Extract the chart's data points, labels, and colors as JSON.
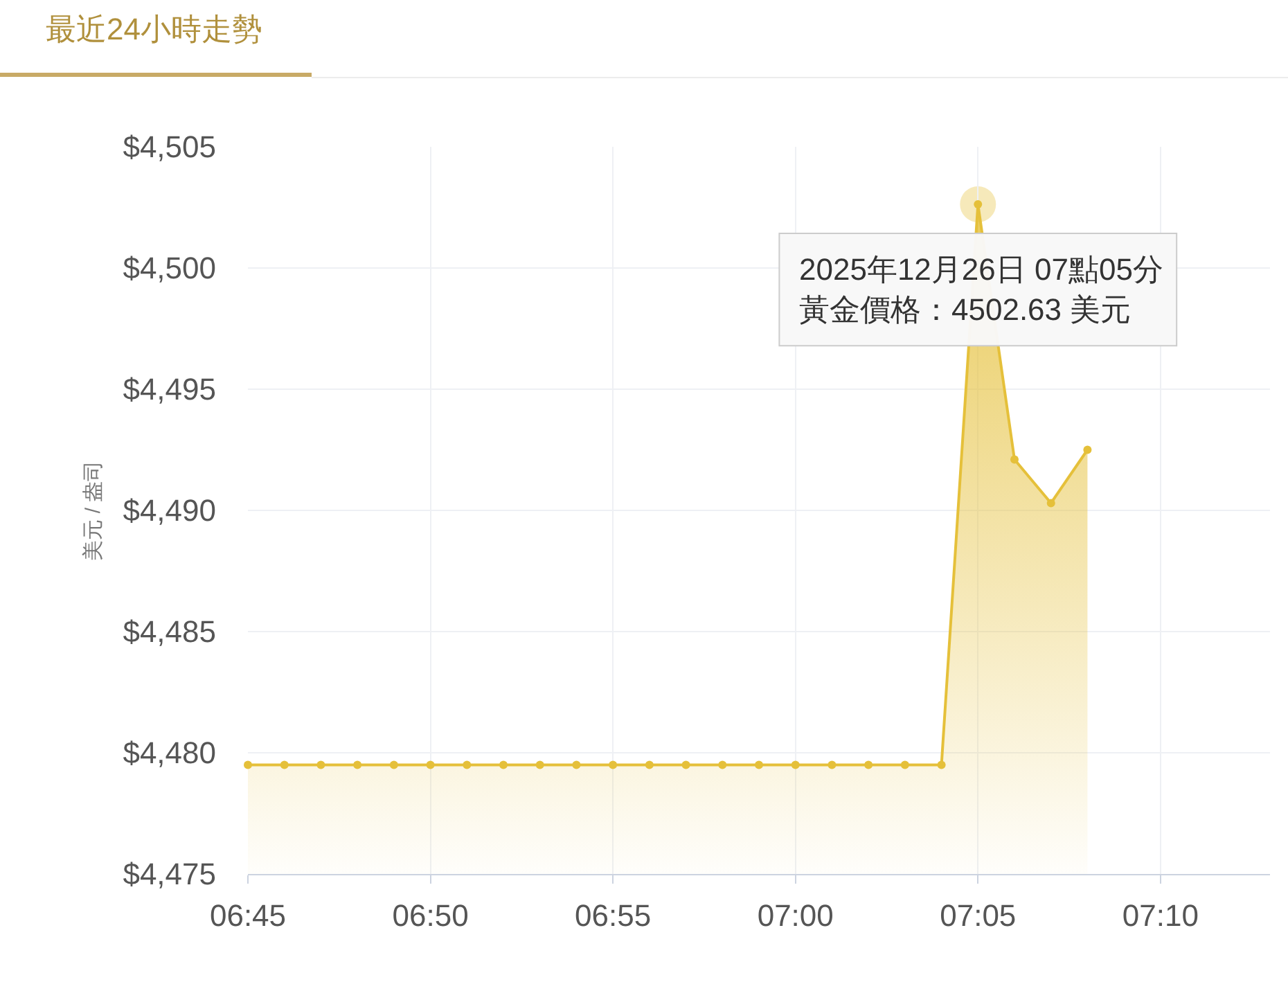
{
  "chart_data": {
    "type": "area",
    "title": "最近24小時走勢",
    "ylabel": "美元 / 盎司",
    "x": [
      "2025-12-26T06:45",
      "2025-12-26T06:46",
      "2025-12-26T06:47",
      "2025-12-26T06:48",
      "2025-12-26T06:49",
      "2025-12-26T06:50",
      "2025-12-26T06:51",
      "2025-12-26T06:52",
      "2025-12-26T06:53",
      "2025-12-26T06:54",
      "2025-12-26T06:55",
      "2025-12-26T06:56",
      "2025-12-26T06:57",
      "2025-12-26T06:58",
      "2025-12-26T06:59",
      "2025-12-26T07:00",
      "2025-12-26T07:01",
      "2025-12-26T07:02",
      "2025-12-26T07:03",
      "2025-12-26T07:04",
      "2025-12-26T07:05",
      "2025-12-26T07:06",
      "2025-12-26T07:07",
      "2025-12-26T07:08"
    ],
    "series": [
      {
        "color": "#e5c03a",
        "values": [
          4479.5,
          4479.5,
          4479.5,
          4479.5,
          4479.5,
          4479.5,
          4479.5,
          4479.5,
          4479.5,
          4479.5,
          4479.5,
          4479.5,
          4479.5,
          4479.5,
          4479.5,
          4479.5,
          4479.5,
          4479.5,
          4479.5,
          4479.5,
          4502.63,
          4492.1,
          4490.3,
          4492.5
        ]
      }
    ],
    "xlim": [
      "2025-12-26T06:45",
      "2025-12-26T07:13"
    ],
    "xticks": [
      {
        "value": "2025-12-26T06:45",
        "label": "06:45"
      },
      {
        "value": "2025-12-26T06:50",
        "label": "06:50"
      },
      {
        "value": "2025-12-26T06:55",
        "label": "06:55"
      },
      {
        "value": "2025-12-26T07:00",
        "label": "07:00"
      },
      {
        "value": "2025-12-26T07:05",
        "label": "07:05"
      },
      {
        "value": "2025-12-26T07:10",
        "label": "07:10"
      }
    ],
    "ylim": [
      4475,
      4505
    ],
    "yticks": [
      {
        "value": 4475,
        "label": "$4,475"
      },
      {
        "value": 4480,
        "label": "$4,480"
      },
      {
        "value": 4485,
        "label": "$4,485"
      },
      {
        "value": 4490,
        "label": "$4,490"
      },
      {
        "value": 4495,
        "label": "$4,495"
      },
      {
        "value": 4500,
        "label": "$4,500"
      },
      {
        "value": 4505,
        "label": "$4,505"
      }
    ],
    "grid": true,
    "marker": "circle",
    "line_style": "solid",
    "annotations": [
      {
        "text": "2025年12月26日 07點05分",
        "x": "2025-12-26T07:05",
        "y": 4502.63
      },
      {
        "text": "黃金價格：4502.63 美元",
        "x": "2025-12-26T07:05",
        "y": 4502.63
      }
    ]
  }
}
